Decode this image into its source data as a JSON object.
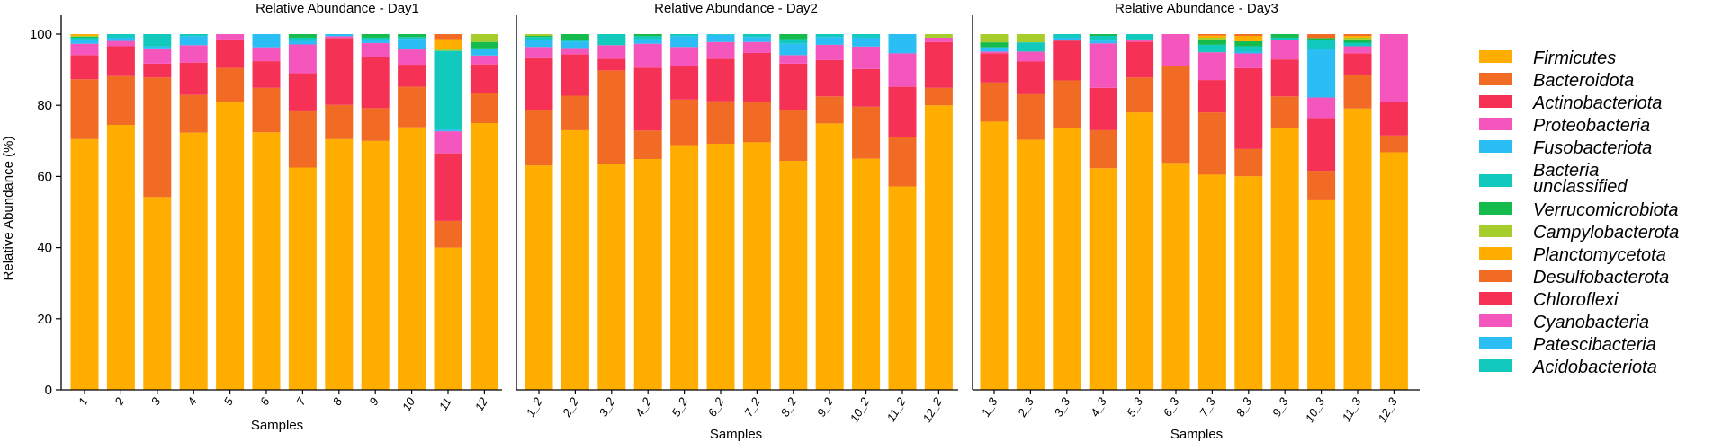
{
  "chart_data": {
    "type": "stacked-bar",
    "ylabel": "Relative Abundance (%)",
    "xlabel": "Samples",
    "ylim": [
      0,
      100
    ],
    "yticks": [
      0,
      20,
      40,
      60,
      80,
      100
    ],
    "taxa": [
      "Firmicutes",
      "Bacteroidota",
      "Actinobacteriota",
      "Proteobacteria",
      "Fusobacteriota",
      "Bacteria unclassified",
      "Verrucomicrobiota",
      "Campylobacterota",
      "Planctomycetota",
      "Desulfobacterota",
      "Chloroflexi",
      "Cyanobacteria",
      "Patescibacteria",
      "Acidobacteriota"
    ],
    "legend": [
      {
        "label": "Firmicutes",
        "lines": [
          "Firmicutes"
        ],
        "color": "#FFAE00"
      },
      {
        "label": "Bacteroidota",
        "lines": [
          "Bacteroidota"
        ],
        "color": "#F26B24"
      },
      {
        "label": "Actinobacteriota",
        "lines": [
          "Actinobacteriota"
        ],
        "color": "#F53255"
      },
      {
        "label": "Proteobacteria",
        "lines": [
          "Proteobacteria"
        ],
        "color": "#F556BE"
      },
      {
        "label": "Fusobacteriota",
        "lines": [
          "Fusobacteriota"
        ],
        "color": "#2BBEF5"
      },
      {
        "label": "Bacteria unclassified",
        "lines": [
          "Bacteria",
          "unclassified"
        ],
        "color": "#12C9BD"
      },
      {
        "label": "Verrucomicrobiota",
        "lines": [
          "Verrucomicrobiota"
        ],
        "color": "#16BB4E"
      },
      {
        "label": "Campylobacterota",
        "lines": [
          "Campylobacterota"
        ],
        "color": "#A6CD2C"
      },
      {
        "label": "Planctomycetota",
        "lines": [
          "Planctomycetota"
        ],
        "color": "#FFAE00"
      },
      {
        "label": "Desulfobacterota",
        "lines": [
          "Desulfobacterota"
        ],
        "color": "#F26B24"
      },
      {
        "label": "Chloroflexi",
        "lines": [
          "Chloroflexi"
        ],
        "color": "#F53255"
      },
      {
        "label": "Cyanobacteria",
        "lines": [
          "Cyanobacteria"
        ],
        "color": "#F556BE"
      },
      {
        "label": "Patescibacteria",
        "lines": [
          "Patescibacteria"
        ],
        "color": "#2BBEF5"
      },
      {
        "label": "Acidobacteriota",
        "lines": [
          "Acidobacteriota"
        ],
        "color": "#12C9BD"
      }
    ],
    "panels": [
      {
        "title": "Relative Abundance - Day1",
        "samples": [
          {
            "name": "1",
            "values": [
              70.5,
              16.8,
              6.8,
              3.2,
              1.2,
              0.5,
              0.3,
              0.2,
              0.5
            ]
          },
          {
            "name": "2",
            "values": [
              74.5,
              13.7,
              8.4,
              1.5,
              0.9,
              1.0
            ]
          },
          {
            "name": "3",
            "values": [
              54.2,
              33.6,
              3.9,
              4.3,
              0.5,
              3.5
            ]
          },
          {
            "name": "4",
            "values": [
              72.3,
              10.6,
              9.1,
              4.9,
              2.5,
              0.6
            ]
          },
          {
            "name": "5",
            "values": [
              80.8,
              9.7,
              8.0,
              1.5
            ]
          },
          {
            "name": "6",
            "values": [
              72.4,
              12.5,
              7.5,
              3.9,
              3.7
            ]
          },
          {
            "name": "7",
            "values": [
              62.5,
              15.8,
              10.7,
              8.1,
              1.0,
              0.9,
              1.0
            ]
          },
          {
            "name": "8",
            "values": [
              70.5,
              9.6,
              18.8,
              0.5,
              0.6
            ]
          },
          {
            "name": "9",
            "values": [
              70.0,
              9.2,
              14.4,
              3.9,
              1.0,
              0.5,
              1.0
            ]
          },
          {
            "name": "10",
            "values": [
              73.8,
              11.4,
              6.2,
              4.3,
              3.0,
              0.5,
              0.8
            ]
          },
          {
            "name": "11",
            "values": [
              40.0,
              7.5,
              19.0,
              6.2,
              0.5,
              22.1,
              0,
              0.5,
              2.8,
              1.4
            ]
          },
          {
            "name": "12",
            "values": [
              75.0,
              8.5,
              8.0,
              2.5,
              2.0,
              0,
              1.8,
              2.2
            ]
          }
        ]
      },
      {
        "title": "Relative Abundance - Day2",
        "samples": [
          {
            "name": "1_2",
            "values": [
              63.1,
              15.6,
              14.5,
              3.2,
              2.0,
              0.8,
              0.3,
              0.5
            ]
          },
          {
            "name": "2_2",
            "values": [
              73.0,
              9.7,
              11.6,
              1.8,
              1.8,
              0.5,
              1.6
            ]
          },
          {
            "name": "3_2",
            "values": [
              63.5,
              26.3,
              3.3,
              3.8,
              0,
              3.1
            ]
          },
          {
            "name": "4_2",
            "values": [
              64.9,
              8.0,
              17.7,
              6.7,
              1.3,
              0.8,
              0.6
            ]
          },
          {
            "name": "5_2",
            "values": [
              68.8,
              12.8,
              9.4,
              5.4,
              3.0,
              0.6
            ]
          },
          {
            "name": "6_2",
            "values": [
              69.2,
              11.9,
              12.0,
              4.7,
              2.0,
              0.2
            ]
          },
          {
            "name": "7_2",
            "values": [
              69.6,
              11.2,
              13.9,
              3.1,
              1.4,
              0.8
            ]
          },
          {
            "name": "8_2",
            "values": [
              64.4,
              14.3,
              13.0,
              2.4,
              3.2,
              1.3,
              1.4
            ]
          },
          {
            "name": "9_2",
            "values": [
              74.9,
              7.6,
              10.2,
              4.3,
              2.2,
              0.8
            ]
          },
          {
            "name": "10_2",
            "values": [
              65.0,
              14.6,
              10.6,
              6.3,
              2.5,
              1.0
            ]
          },
          {
            "name": "11_2",
            "values": [
              57.2,
              13.9,
              14.1,
              9.4,
              5.4
            ]
          },
          {
            "name": "12_2",
            "values": [
              80.0,
              4.9,
              12.9,
              1.2,
              0,
              0,
              0,
              1.0
            ]
          }
        ]
      },
      {
        "title": "Relative Abundance - Day3",
        "samples": [
          {
            "name": "1_3",
            "values": [
              75.4,
              11.0,
              8.2,
              0.5,
              1.2,
              0,
              1.4,
              2.3
            ]
          },
          {
            "name": "2_3",
            "values": [
              70.3,
              12.8,
              9.2,
              2.8,
              0,
              2.6,
              0,
              2.3
            ]
          },
          {
            "name": "3_3",
            "values": [
              73.6,
              13.4,
              11.2,
              0,
              0.8,
              1.0
            ]
          },
          {
            "name": "4_3",
            "values": [
              62.3,
              10.7,
              11.9,
              12.5,
              0.8,
              1.3,
              0.5
            ]
          },
          {
            "name": "5_3",
            "values": [
              78.0,
              9.8,
              10.1,
              0.6,
              0,
              1.5
            ]
          },
          {
            "name": "6_3",
            "values": [
              63.8,
              27.3,
              0,
              8.9
            ]
          },
          {
            "name": "7_3",
            "values": [
              60.5,
              17.5,
              9.1,
              7.8,
              0,
              2.1,
              1.5,
              0.5,
              0.6,
              0.4
            ]
          },
          {
            "name": "8_3",
            "values": [
              59.7,
              7.6,
              22.6,
              4.1,
              0.5,
              1.5,
              1.4,
              0,
              1.5,
              0.5
            ]
          },
          {
            "name": "9_3",
            "values": [
              73.6,
              8.9,
              10.4,
              5.4,
              0,
              0.7,
              1.0
            ]
          },
          {
            "name": "10_3",
            "values": [
              53.3,
              8.3,
              14.8,
              5.8,
              13.7,
              2.5,
              0.5,
              0,
              0,
              1.1
            ]
          },
          {
            "name": "11_3",
            "values": [
              79.1,
              9.4,
              6.1,
              2.0,
              0,
              1.0,
              0.9,
              0.5,
              0.5,
              0.5
            ]
          },
          {
            "name": "12_3",
            "values": [
              66.8,
              4.7,
              9.5,
              19.0
            ]
          }
        ]
      }
    ]
  }
}
